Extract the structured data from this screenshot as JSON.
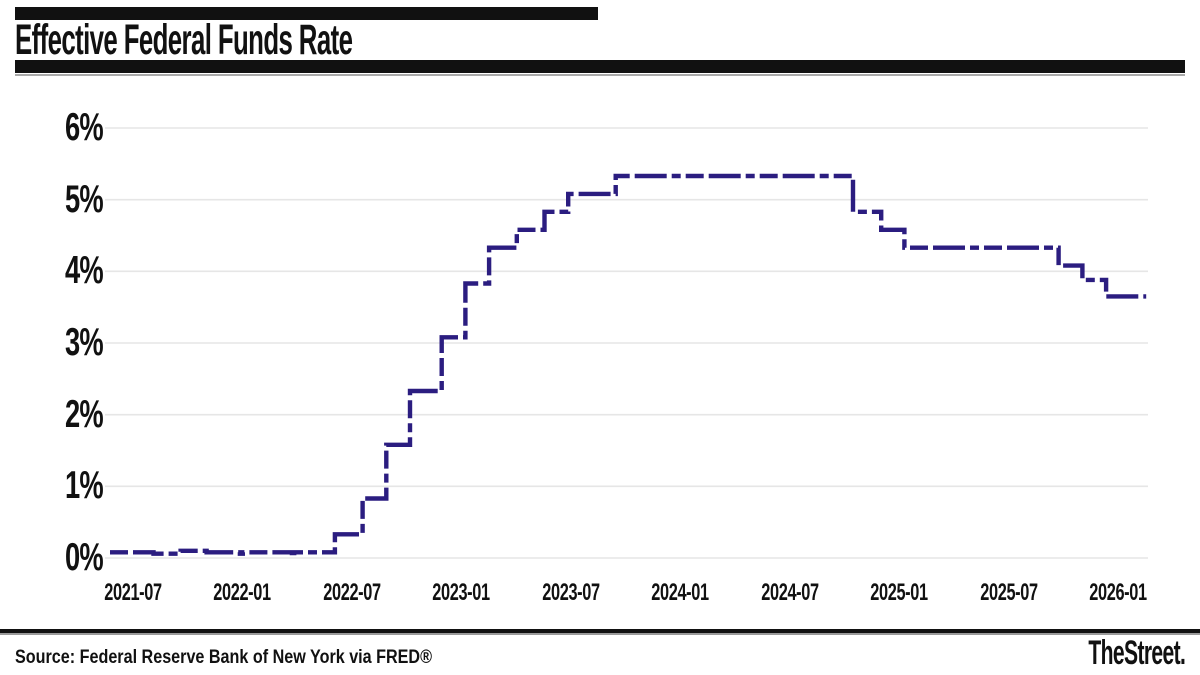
{
  "header": {
    "title": "Effective Federal Funds Rate"
  },
  "footer": {
    "source": "Source: Federal Reserve Bank of New York via FRED®",
    "logo": "TheStreet."
  },
  "chart_data": {
    "type": "line",
    "subtype": "step-after",
    "line_style": "dashed",
    "line_color": "#2b1d80",
    "grid": "horizontal gridlines only, light gray",
    "legend": "none",
    "title": "Effective Federal Funds Rate",
    "xlabel": "",
    "ylabel": "",
    "ylim": [
      0,
      6.3
    ],
    "x_range": [
      "2021-02",
      "2026-02"
    ],
    "y_ticks": [
      "0%",
      "1%",
      "2%",
      "3%",
      "4%",
      "5%",
      "6%"
    ],
    "x_ticks": [
      "2021-07",
      "2022-01",
      "2022-07",
      "2023-01",
      "2023-07",
      "2024-01",
      "2024-07",
      "2025-01",
      "2025-07",
      "2026-01"
    ],
    "series": [
      {
        "name": "Effective Federal Funds Rate (%)",
        "points": [
          [
            "2021-02-12",
            0.08
          ],
          [
            "2021-04-30",
            0.06
          ],
          [
            "2021-06-17",
            0.1
          ],
          [
            "2021-08-02",
            0.08
          ],
          [
            "2021-09-30",
            0.06
          ],
          [
            "2021-10-05",
            0.08
          ],
          [
            "2021-12-31",
            0.07
          ],
          [
            "2022-01-04",
            0.08
          ],
          [
            "2022-03-17",
            0.33
          ],
          [
            "2022-05-05",
            0.83
          ],
          [
            "2022-06-16",
            1.58
          ],
          [
            "2022-07-28",
            2.33
          ],
          [
            "2022-09-22",
            3.08
          ],
          [
            "2022-11-03",
            3.83
          ],
          [
            "2022-12-15",
            4.33
          ],
          [
            "2023-02-02",
            4.58
          ],
          [
            "2023-03-23",
            4.83
          ],
          [
            "2023-05-04",
            5.08
          ],
          [
            "2023-07-27",
            5.33
          ],
          [
            "2024-09-19",
            4.83
          ],
          [
            "2024-11-08",
            4.58
          ],
          [
            "2024-12-19",
            4.33
          ],
          [
            "2025-09-18",
            4.08
          ],
          [
            "2025-10-30",
            3.88
          ],
          [
            "2025-12-11",
            3.65
          ],
          [
            "2026-02-20",
            3.65
          ]
        ]
      }
    ]
  }
}
